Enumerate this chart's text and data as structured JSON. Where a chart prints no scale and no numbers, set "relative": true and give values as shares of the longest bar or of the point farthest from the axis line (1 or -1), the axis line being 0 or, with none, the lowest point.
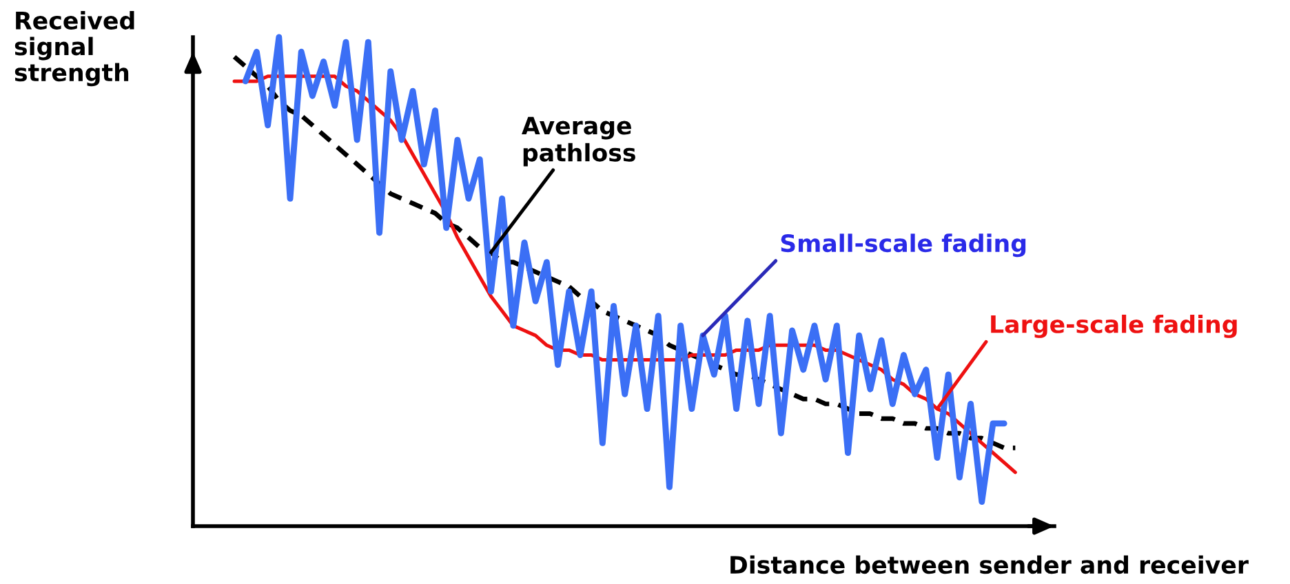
{
  "chart_data": {
    "type": "line",
    "relative": true,
    "xlabel": "Distance between sender and receiver",
    "ylabel": "Received\nsignal\nstrength",
    "tick_labels": false,
    "marker": "none",
    "categories": [
      null,
      null,
      null,
      null,
      null,
      null,
      null,
      null,
      null,
      null,
      null,
      null,
      null,
      null,
      null,
      null,
      null,
      null,
      null,
      null,
      null,
      null,
      null,
      null,
      null,
      null,
      null,
      null,
      null,
      null,
      null,
      null,
      null,
      null,
      null,
      null,
      null,
      null,
      null,
      null,
      null,
      null,
      null,
      null,
      null,
      null,
      null,
      null,
      null,
      null,
      null,
      null,
      null,
      null,
      null,
      null,
      null,
      null,
      null,
      null,
      null,
      null,
      null,
      null,
      null,
      null,
      null,
      null,
      null,
      null,
      null
    ],
    "series": [
      {
        "color": "#3b6ff5",
        "line_style": "solid",
        "values": [
          null,
          0.91,
          0.97,
          0.82,
          1.0,
          0.67,
          0.97,
          0.88,
          0.95,
          0.86,
          0.99,
          0.79,
          0.99,
          0.6,
          0.93,
          0.79,
          0.89,
          0.74,
          0.85,
          0.61,
          0.79,
          0.67,
          0.75,
          0.48,
          0.67,
          0.41,
          0.58,
          0.46,
          0.54,
          0.33,
          0.48,
          0.35,
          0.48,
          0.17,
          0.45,
          0.27,
          0.41,
          0.24,
          0.43,
          0.08,
          0.41,
          0.24,
          0.39,
          0.31,
          0.43,
          0.24,
          0.42,
          0.25,
          0.43,
          0.19,
          0.4,
          0.32,
          0.41,
          0.3,
          0.41,
          0.15,
          0.39,
          0.28,
          0.38,
          0.25,
          0.35,
          0.27,
          0.32,
          0.14,
          0.31,
          0.1,
          0.25,
          0.05,
          0.21,
          0.21,
          null
        ]
      },
      {
        "color": "#ee1111",
        "line_style": "solid",
        "values": [
          0.91,
          0.91,
          0.91,
          0.92,
          0.92,
          0.92,
          0.92,
          0.92,
          0.92,
          0.92,
          0.9,
          0.89,
          0.87,
          0.85,
          0.83,
          0.8,
          0.76,
          0.72,
          0.68,
          0.64,
          0.59,
          0.55,
          0.51,
          0.47,
          0.44,
          0.41,
          0.4,
          0.39,
          0.37,
          0.36,
          0.36,
          0.35,
          0.35,
          0.34,
          0.34,
          0.34,
          0.34,
          0.34,
          0.34,
          0.34,
          0.34,
          0.35,
          0.35,
          0.35,
          0.35,
          0.36,
          0.36,
          0.36,
          0.37,
          0.37,
          0.37,
          0.37,
          0.37,
          0.36,
          0.36,
          0.35,
          0.34,
          0.33,
          0.32,
          0.3,
          0.29,
          0.27,
          0.26,
          0.24,
          0.23,
          0.21,
          0.19,
          0.17,
          0.15,
          0.13,
          0.11
        ]
      },
      {
        "color": "#000000",
        "line_style": "dashed",
        "values": [
          0.96,
          0.94,
          0.92,
          0.9,
          0.87,
          0.85,
          0.84,
          0.82,
          0.8,
          0.78,
          0.76,
          0.74,
          0.72,
          0.7,
          0.68,
          0.67,
          0.66,
          0.65,
          0.64,
          0.62,
          0.61,
          0.59,
          0.57,
          0.56,
          0.54,
          0.54,
          0.53,
          0.52,
          0.51,
          0.5,
          0.49,
          0.47,
          0.46,
          0.44,
          0.43,
          0.42,
          0.41,
          0.4,
          0.39,
          0.37,
          0.36,
          0.35,
          0.34,
          0.33,
          0.32,
          0.31,
          0.31,
          0.3,
          0.29,
          0.28,
          0.27,
          0.26,
          0.26,
          0.25,
          0.25,
          0.24,
          0.23,
          0.23,
          0.22,
          0.22,
          0.21,
          0.21,
          0.2,
          0.2,
          0.19,
          0.19,
          0.18,
          0.18,
          0.17,
          0.16,
          0.16
        ]
      }
    ],
    "annotations": [
      "Small-scale fading",
      "Large-scale fading",
      "Average\npathloss"
    ]
  }
}
